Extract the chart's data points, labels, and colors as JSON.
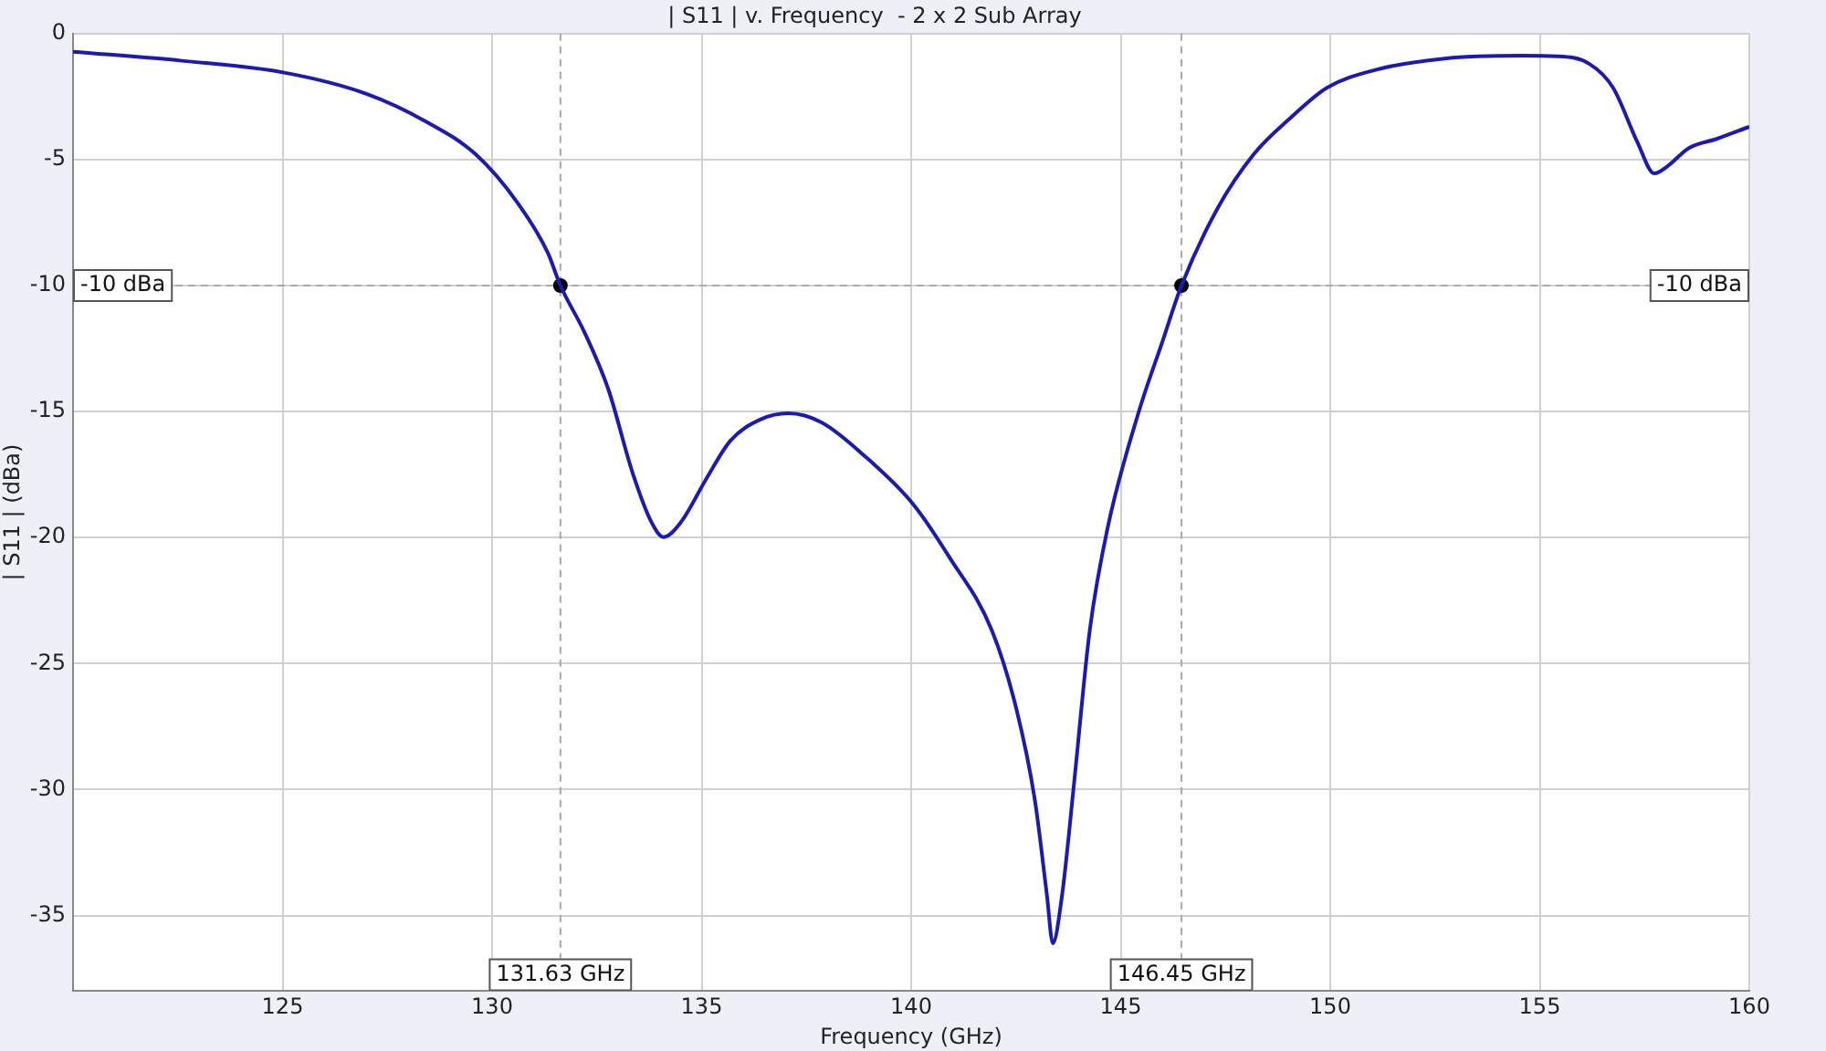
{
  "chart_data": {
    "type": "line",
    "title": "| S11 | v. Frequency  - 2 x 2 Sub Array",
    "xlabel": "Frequency (GHz)",
    "ylabel": "| S11 | (dBa)",
    "xlim": [
      120,
      160
    ],
    "xticks": [
      125,
      130,
      135,
      140,
      145,
      150,
      155,
      160
    ],
    "ylim": [
      -38,
      0
    ],
    "yticks": [
      0,
      -5,
      -10,
      -15,
      -20,
      -25,
      -30,
      -35
    ],
    "grid": true,
    "legend": false,
    "marker": "none",
    "line_style": "solid",
    "series": [
      {
        "color": "#1a1ab4",
        "x": [
          120,
          122.6,
          125.04,
          127.0,
          128.4,
          129.6,
          130.6,
          131.33,
          131.63,
          132.2,
          132.77,
          133.36,
          133.8,
          134.09,
          134.51,
          135.1,
          135.69,
          136.41,
          137.07,
          137.86,
          138.88,
          140.04,
          140.92,
          141.93,
          142.51,
          142.95,
          143.24,
          143.38,
          143.6,
          143.89,
          144.26,
          144.69,
          145.42,
          146.0,
          146.45,
          147.31,
          148.18,
          149.05,
          149.92,
          151.08,
          152.68,
          154.57,
          155.44,
          156.17,
          156.75,
          157.33,
          157.73,
          158.05,
          158.56,
          159.22,
          160
        ],
        "values": [
          -0.72,
          -1.08,
          -1.55,
          -2.39,
          -3.47,
          -4.78,
          -6.7,
          -8.7,
          -10,
          -11.84,
          -14.1,
          -17.47,
          -19.38,
          -19.98,
          -19.38,
          -17.7,
          -16.15,
          -15.31,
          -15.07,
          -15.43,
          -16.75,
          -18.66,
          -20.8,
          -23.7,
          -26.8,
          -30.4,
          -34.2,
          -36.1,
          -34.2,
          -29.7,
          -23.7,
          -19.6,
          -15.07,
          -12.2,
          -10,
          -6.94,
          -4.78,
          -3.35,
          -2.15,
          -1.44,
          -1.0,
          -0.88,
          -0.9,
          -1.19,
          -2.15,
          -4.31,
          -5.55,
          -5.26,
          -4.54,
          -4.18,
          -3.7
        ]
      },
      {
        "type": "scatter",
        "marker": "circle",
        "color": "#000000",
        "x": [
          131.63,
          146.45
        ],
        "values": [
          -10,
          -10
        ]
      }
    ],
    "ref_lines": [
      {
        "axis": "y",
        "value": -10,
        "label": "-10 dBa",
        "color": "#aaaaaa",
        "line_style": "dashed"
      },
      {
        "axis": "x",
        "value": 131.63,
        "label": "131.63 GHz",
        "color": "#aaaaaa",
        "line_style": "dashed"
      },
      {
        "axis": "x",
        "value": 146.45,
        "label": "146.45 GHz",
        "color": "#aaaaaa",
        "line_style": "dashed"
      }
    ]
  }
}
